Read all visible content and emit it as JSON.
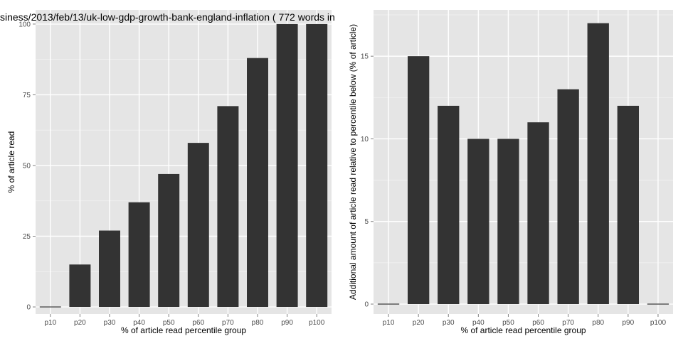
{
  "chart_data": [
    {
      "type": "bar",
      "title": "siness/2013/feb/13/uk-low-gdp-growth-bank-england-inflation ( 772 words in",
      "xlabel": "% of article read percentile group",
      "ylabel": "% of article read",
      "categories": [
        "p10",
        "p20",
        "p30",
        "p40",
        "p50",
        "p60",
        "p70",
        "p80",
        "p90",
        "p100"
      ],
      "values": [
        0,
        15,
        27,
        37,
        47,
        58,
        71,
        88,
        100,
        100
      ],
      "ylim": [
        -2.5,
        105
      ],
      "yticks": [
        0,
        25,
        50,
        75,
        100
      ],
      "grid": true,
      "bar_color": "#333333",
      "panel_color": "#e5e5e5"
    },
    {
      "type": "bar",
      "title": "",
      "xlabel": "% of article read percentile group",
      "ylabel": "Additional amount of article read relative to percentile below (% of article)",
      "categories": [
        "p10",
        "p20",
        "p30",
        "p40",
        "p50",
        "p60",
        "p70",
        "p80",
        "p90",
        "p100"
      ],
      "values": [
        0,
        15,
        12,
        10,
        10,
        11,
        13,
        17,
        12,
        0
      ],
      "ylim": [
        -0.6,
        17.8
      ],
      "yticks": [
        0,
        5,
        10,
        15
      ],
      "grid": true,
      "bar_color": "#333333",
      "panel_color": "#e5e5e5"
    }
  ]
}
